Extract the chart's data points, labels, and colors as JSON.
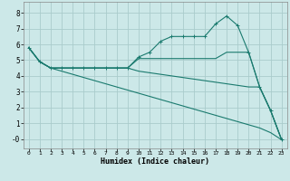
{
  "xlabel": "Humidex (Indice chaleur)",
  "bg_color": "#cce8e8",
  "grid_color": "#aacccc",
  "line_color": "#1a7a6e",
  "xlim": [
    -0.5,
    23.5
  ],
  "ylim": [
    -0.6,
    8.7
  ],
  "xticks": [
    0,
    1,
    2,
    3,
    4,
    5,
    6,
    7,
    8,
    9,
    10,
    11,
    12,
    13,
    14,
    15,
    16,
    17,
    18,
    19,
    20,
    21,
    22,
    23
  ],
  "yticks": [
    0,
    1,
    2,
    3,
    4,
    5,
    6,
    7,
    8
  ],
  "lines": [
    {
      "x": [
        0,
        1,
        2,
        3,
        4,
        5,
        6,
        7,
        8,
        9,
        10,
        11,
        12,
        13,
        14,
        15,
        16,
        17,
        18,
        19,
        20,
        21,
        22,
        23
      ],
      "y": [
        5.8,
        4.9,
        4.5,
        4.5,
        4.5,
        4.5,
        4.5,
        4.5,
        4.5,
        4.5,
        5.2,
        5.5,
        6.2,
        6.5,
        6.5,
        6.5,
        6.5,
        7.3,
        7.8,
        7.2,
        5.5,
        3.3,
        1.8,
        -0.05
      ],
      "marker": true
    },
    {
      "x": [
        0,
        1,
        2,
        3,
        4,
        5,
        6,
        7,
        8,
        9,
        10,
        11,
        12,
        13,
        14,
        15,
        16,
        17,
        18,
        19,
        20,
        21,
        22,
        23
      ],
      "y": [
        5.8,
        4.9,
        4.5,
        4.5,
        4.5,
        4.5,
        4.5,
        4.5,
        4.5,
        4.5,
        5.1,
        5.1,
        5.1,
        5.1,
        5.1,
        5.1,
        5.1,
        5.1,
        5.5,
        5.5,
        5.5,
        3.3,
        1.8,
        -0.05
      ],
      "marker": false
    },
    {
      "x": [
        0,
        1,
        2,
        3,
        4,
        5,
        6,
        7,
        8,
        9,
        10,
        11,
        12,
        13,
        14,
        15,
        16,
        17,
        18,
        19,
        20,
        21,
        22,
        23
      ],
      "y": [
        5.8,
        4.9,
        4.5,
        4.5,
        4.5,
        4.5,
        4.5,
        4.5,
        4.5,
        4.5,
        4.3,
        4.2,
        4.1,
        4.0,
        3.9,
        3.8,
        3.7,
        3.6,
        3.5,
        3.4,
        3.3,
        3.3,
        1.8,
        -0.05
      ],
      "marker": false
    },
    {
      "x": [
        0,
        1,
        2,
        3,
        4,
        5,
        6,
        7,
        8,
        9,
        10,
        11,
        12,
        13,
        14,
        15,
        16,
        17,
        18,
        19,
        20,
        21,
        22,
        23
      ],
      "y": [
        5.8,
        4.9,
        4.5,
        4.3,
        4.1,
        3.9,
        3.7,
        3.5,
        3.3,
        3.1,
        2.9,
        2.7,
        2.5,
        2.3,
        2.1,
        1.9,
        1.7,
        1.5,
        1.3,
        1.1,
        0.9,
        0.7,
        0.4,
        -0.05
      ],
      "marker": false
    }
  ]
}
